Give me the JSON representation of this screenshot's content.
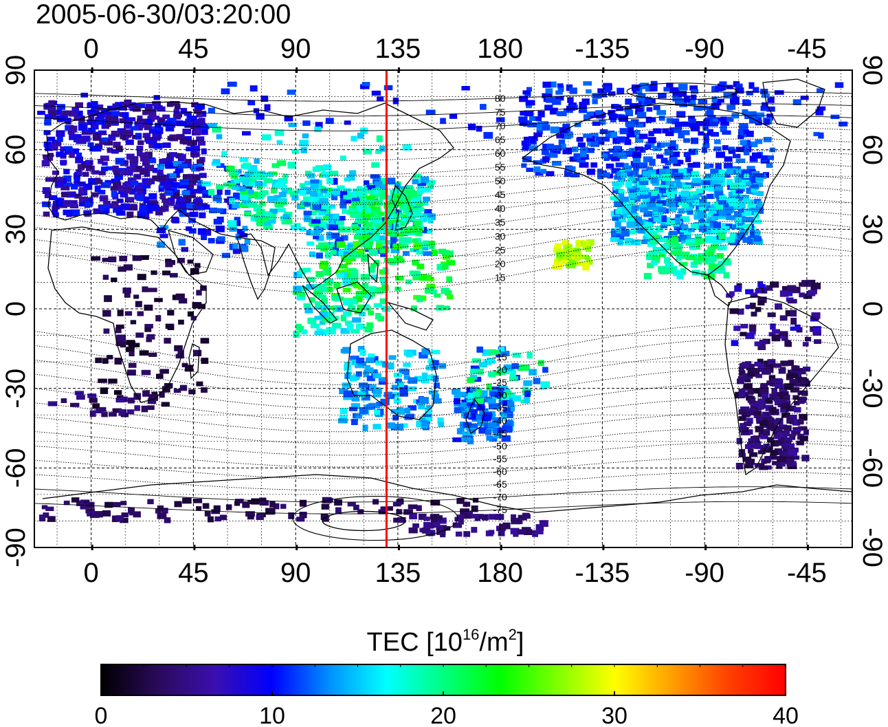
{
  "title": "2005-06-30/03:20:00",
  "colorbar": {
    "label_main": "TEC  [10",
    "label_exp1": "16",
    "label_mid": "/m",
    "label_exp2": "2",
    "label_end": "]",
    "ticks": [
      "0",
      "10",
      "20",
      "30",
      "40"
    ],
    "colors": [
      "#000000",
      "#2a0a5a",
      "#3a0fb0",
      "#0000ff",
      "#0090ff",
      "#00ffff",
      "#00ff80",
      "#00ff00",
      "#80ff00",
      "#ffff00",
      "#ffa000",
      "#ff4000",
      "#ff0000"
    ]
  },
  "axes": {
    "lon_ticks": [
      "0",
      "45",
      "90",
      "135",
      "180",
      "-135",
      "-90",
      "-45"
    ],
    "lat_ticks": [
      "90",
      "60",
      "30",
      "0",
      "-30",
      "-60",
      "-90"
    ]
  },
  "contour_labels_north": [
    "80",
    "75",
    "70",
    "65",
    "60",
    "55",
    "50",
    "45",
    "40",
    "35",
    "30",
    "25",
    "20",
    "15"
  ],
  "contour_labels_south": [
    "-15",
    "-20",
    "-25",
    "-30",
    "-35",
    "-40",
    "-45",
    "-50",
    "-55",
    "-60",
    "-65",
    "-70",
    "-75"
  ],
  "meridian_marker": {
    "longitude": 130,
    "color": "#ff0000"
  }
}
